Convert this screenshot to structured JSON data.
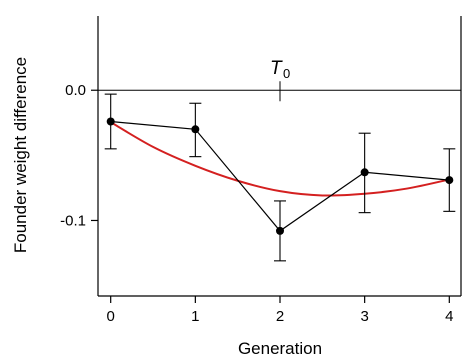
{
  "chart_data": {
    "type": "line",
    "xlabel": "Generation",
    "ylabel": "Founder weight difference",
    "xlim": [
      -0.15,
      4.15
    ],
    "ylim": [
      -0.158,
      0.057
    ],
    "x_ticks": [
      0,
      1,
      2,
      3,
      4
    ],
    "x_tick_labels": [
      "0",
      "1",
      "2",
      "3",
      "4"
    ],
    "y_ticks": [
      0.0,
      -0.1
    ],
    "y_tick_labels": [
      "0.0",
      "-0.1"
    ],
    "grid": false,
    "reference_line": {
      "y": 0.0
    },
    "annotation": {
      "text": "T",
      "subscript": "0",
      "x": 2,
      "y": 0.0
    },
    "series": [
      {
        "kind": "observed",
        "color": "#000000",
        "x": [
          0,
          1,
          2,
          3,
          4
        ],
        "y": [
          -0.024,
          -0.03,
          -0.108,
          -0.063,
          -0.069
        ],
        "error_low": [
          -0.045,
          -0.051,
          -0.131,
          -0.094,
          -0.093
        ],
        "error_high": [
          -0.003,
          -0.01,
          -0.085,
          -0.033,
          -0.045
        ]
      },
      {
        "kind": "quadratic-fit",
        "color": "#d42020",
        "x": [
          0,
          0.5,
          1,
          1.5,
          2,
          2.5,
          3,
          3.5,
          4
        ],
        "y": [
          -0.0245,
          -0.0435,
          -0.058,
          -0.0695,
          -0.0775,
          -0.0808,
          -0.0795,
          -0.0755,
          -0.0685
        ]
      }
    ]
  }
}
